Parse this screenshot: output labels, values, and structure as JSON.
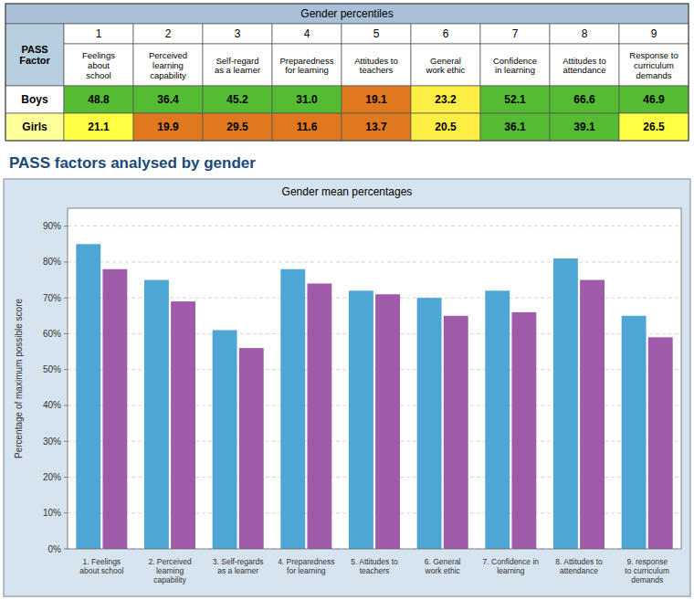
{
  "chart_data": [
    {
      "type": "table",
      "title": "Gender percentiles",
      "xlabel": "PASS Factor",
      "x": [
        1,
        2,
        3,
        4,
        5,
        6,
        7,
        8,
        9
      ],
      "categories": [
        "Feelings\nabout\nschool",
        "Perceived\nlearning\ncapability",
        "Self-regard\nas a learner",
        "Preparedness\nfor learning",
        "Attitudes to\nteachers",
        "General\nwork ethic",
        "Confidence\nin learning",
        "Attitudes to\nattendance",
        "Response to\ncurriculum\ndemands"
      ],
      "data_labels": true,
      "series": [
        {
          "name": "Boys",
          "values": [
            48.8,
            36.4,
            45.2,
            31.0,
            19.1,
            23.2,
            52.1,
            66.6,
            46.9
          ],
          "value_labels": [
            "48.8",
            "36.4",
            "45.2",
            "31.0",
            "19.1",
            "23.2",
            "52.1",
            "66.6",
            "46.9"
          ],
          "colors": [
            "#55bb33",
            "#55bb33",
            "#55bb33",
            "#55bb33",
            "#e07820",
            "#ffee44",
            "#55bb33",
            "#55bb33",
            "#55bb33"
          ]
        },
        {
          "name": "Girls",
          "values": [
            21.1,
            19.9,
            29.5,
            11.6,
            13.7,
            20.5,
            36.1,
            39.1,
            26.5
          ],
          "value_labels": [
            "21.1",
            "19.9",
            "29.5",
            "11.6",
            "13.7",
            "20.5",
            "36.1",
            "39.1",
            "26.5"
          ],
          "colors": [
            "#ffff44",
            "#e07820",
            "#e07820",
            "#e07820",
            "#e07820",
            "#ffee44",
            "#55bb33",
            "#55bb33",
            "#ffff44"
          ]
        }
      ]
    },
    {
      "type": "bar",
      "title": "PASS factors analysed by gender",
      "subtitle": "Gender mean percentages",
      "ylabel": "Percentage of maximum possible score",
      "categories": [
        "1. Feelings\nabout school",
        "2. Perceived\nlearning\ncapability",
        "3. Self-regards\nas a learner",
        "4. Preparedness\nfor learning",
        "5. Attitudes to\nteachers",
        "6. General\nwork ethic",
        "7. Confidence in\nlearning",
        "8. Attitudes to\nattendance",
        "9. response\nto curriculum\ndemands"
      ],
      "series": [
        {
          "color": "#4da6d4",
          "values": [
            85,
            75,
            61,
            78,
            72,
            70,
            72,
            81,
            65
          ]
        },
        {
          "color": "#a05aaa",
          "values": [
            78,
            69,
            56,
            74,
            71,
            65,
            66,
            75,
            59
          ]
        }
      ],
      "ylim": [
        0,
        95
      ],
      "yticks": [
        {
          "value": 0,
          "label": "0%"
        },
        {
          "value": 10,
          "label": "10%"
        },
        {
          "value": 20,
          "label": "20%"
        },
        {
          "value": 30,
          "label": "30%"
        },
        {
          "value": 40,
          "label": "40%"
        },
        {
          "value": 50,
          "label": "50%"
        },
        {
          "value": 60,
          "label": "60%"
        },
        {
          "value": 70,
          "label": "70%"
        },
        {
          "value": 80,
          "label": "80%"
        },
        {
          "value": 90,
          "label": "90%"
        }
      ],
      "grid": true
    }
  ]
}
